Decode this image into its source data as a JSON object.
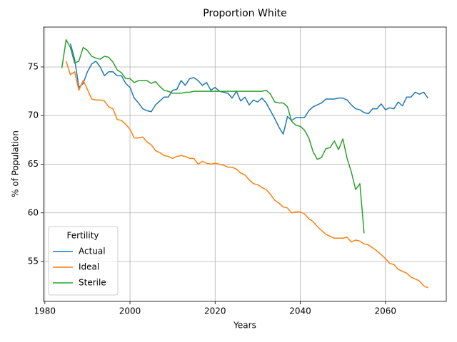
{
  "chart_data": {
    "type": "line",
    "title": "Proportion White",
    "xlabel": "Years",
    "ylabel": "% of Population",
    "legend_title": "Fertility",
    "legend": "lower left",
    "grid": true,
    "x": [
      1984,
      1985,
      1986,
      1987,
      1988,
      1989,
      1990,
      1991,
      1992,
      1993,
      1994,
      1995,
      1996,
      1997,
      1998,
      1999,
      2000,
      2001,
      2002,
      2003,
      2004,
      2005,
      2006,
      2007,
      2008,
      2009,
      2010,
      2011,
      2012,
      2013,
      2014,
      2015,
      2016,
      2017,
      2018,
      2019,
      2020,
      2021,
      2022,
      2023,
      2024,
      2025,
      2026,
      2027,
      2028,
      2029,
      2030,
      2031,
      2032,
      2033,
      2034,
      2035,
      2036,
      2037,
      2038,
      2039,
      2040,
      2041,
      2042,
      2043,
      2044,
      2045,
      2046,
      2047,
      2048,
      2049,
      2050,
      2051,
      2052,
      2053,
      2054,
      2055,
      2056,
      2057,
      2058,
      2059,
      2060,
      2061,
      2062,
      2063,
      2064,
      2065,
      2066,
      2067,
      2068,
      2069,
      2070
    ],
    "series": [
      {
        "name": "Actual",
        "color": "#1f77b4",
        "values": [
          null,
          null,
          77.4,
          75.8,
          72.9,
          73.3,
          74.5,
          75.3,
          75.6,
          75.0,
          74.1,
          74.5,
          74.5,
          74.1,
          74.1,
          73.3,
          72.9,
          71.8,
          71.3,
          70.7,
          70.5,
          70.4,
          71.1,
          71.5,
          71.9,
          71.9,
          72.6,
          72.7,
          73.6,
          73.1,
          73.8,
          73.9,
          73.6,
          73.1,
          73.4,
          72.6,
          72.9,
          72.5,
          72.4,
          72.3,
          71.8,
          72.5,
          71.5,
          71.9,
          71.1,
          71.6,
          71.4,
          71.8,
          71.3,
          70.5,
          69.7,
          68.8,
          68.1,
          69.9,
          69.5,
          69.8,
          69.8,
          69.8,
          70.5,
          70.9,
          71.1,
          71.3,
          71.7,
          71.7,
          71.7,
          71.8,
          71.8,
          71.6,
          71.1,
          70.7,
          70.6,
          70.3,
          70.2,
          70.7,
          70.7,
          71.2,
          70.6,
          70.8,
          70.7,
          71.4,
          71.0,
          71.9,
          71.9,
          72.4,
          72.2,
          72.4,
          71.8
        ]
      },
      {
        "name": "Ideal",
        "color": "#ff7f0e",
        "values": [
          null,
          75.6,
          74.2,
          74.5,
          72.6,
          73.6,
          72.7,
          71.7,
          71.6,
          71.6,
          71.5,
          70.9,
          70.7,
          69.6,
          69.5,
          69.1,
          68.6,
          67.7,
          67.7,
          67.8,
          67.3,
          67.0,
          66.4,
          66.2,
          65.9,
          65.8,
          65.6,
          65.8,
          65.9,
          65.8,
          65.6,
          65.6,
          65.0,
          65.3,
          65.1,
          65.0,
          65.1,
          65.0,
          64.9,
          64.7,
          64.7,
          64.5,
          64.1,
          63.9,
          63.4,
          63.0,
          62.9,
          62.6,
          62.4,
          61.9,
          61.3,
          61.0,
          60.6,
          60.5,
          60.0,
          60.1,
          60.1,
          59.9,
          59.4,
          59.1,
          58.6,
          58.2,
          57.8,
          57.6,
          57.4,
          57.4,
          57.4,
          57.5,
          57.0,
          57.2,
          57.1,
          56.8,
          56.7,
          56.4,
          56.1,
          55.7,
          55.3,
          54.8,
          54.7,
          54.2,
          54.0,
          53.8,
          53.4,
          53.2,
          53.0,
          52.5,
          52.3
        ]
      },
      {
        "name": "Sterile",
        "color": "#2ca02c",
        "values": [
          74.9,
          77.8,
          77.0,
          75.4,
          75.6,
          77.0,
          76.7,
          76.1,
          75.9,
          75.8,
          76.1,
          76.0,
          75.5,
          74.7,
          74.4,
          73.8,
          73.8,
          73.4,
          73.6,
          73.6,
          73.6,
          73.3,
          73.5,
          73.0,
          72.6,
          72.5,
          72.3,
          72.3,
          72.3,
          72.4,
          72.4,
          72.5,
          72.5,
          72.5,
          72.5,
          72.5,
          72.5,
          72.5,
          72.5,
          72.5,
          72.5,
          72.5,
          72.5,
          72.5,
          72.5,
          72.5,
          72.5,
          72.5,
          72.6,
          72.2,
          71.4,
          71.3,
          71.3,
          70.9,
          69.4,
          69.0,
          68.9,
          68.5,
          67.7,
          66.3,
          65.5,
          65.7,
          66.6,
          66.7,
          67.4,
          66.5,
          67.6,
          65.6,
          64.2,
          62.4,
          63.0,
          57.9,
          null,
          null,
          null,
          null,
          null,
          null,
          null,
          null,
          null,
          null,
          null,
          null,
          null,
          null,
          null
        ]
      }
    ],
    "xlim": [
      1979.7,
      2074.3
    ],
    "xticks": [
      1980,
      2000,
      2020,
      2040,
      2060
    ],
    "ylim": [
      50.9,
      79.1
    ],
    "yticks": [
      55,
      60,
      65,
      70,
      75
    ]
  }
}
